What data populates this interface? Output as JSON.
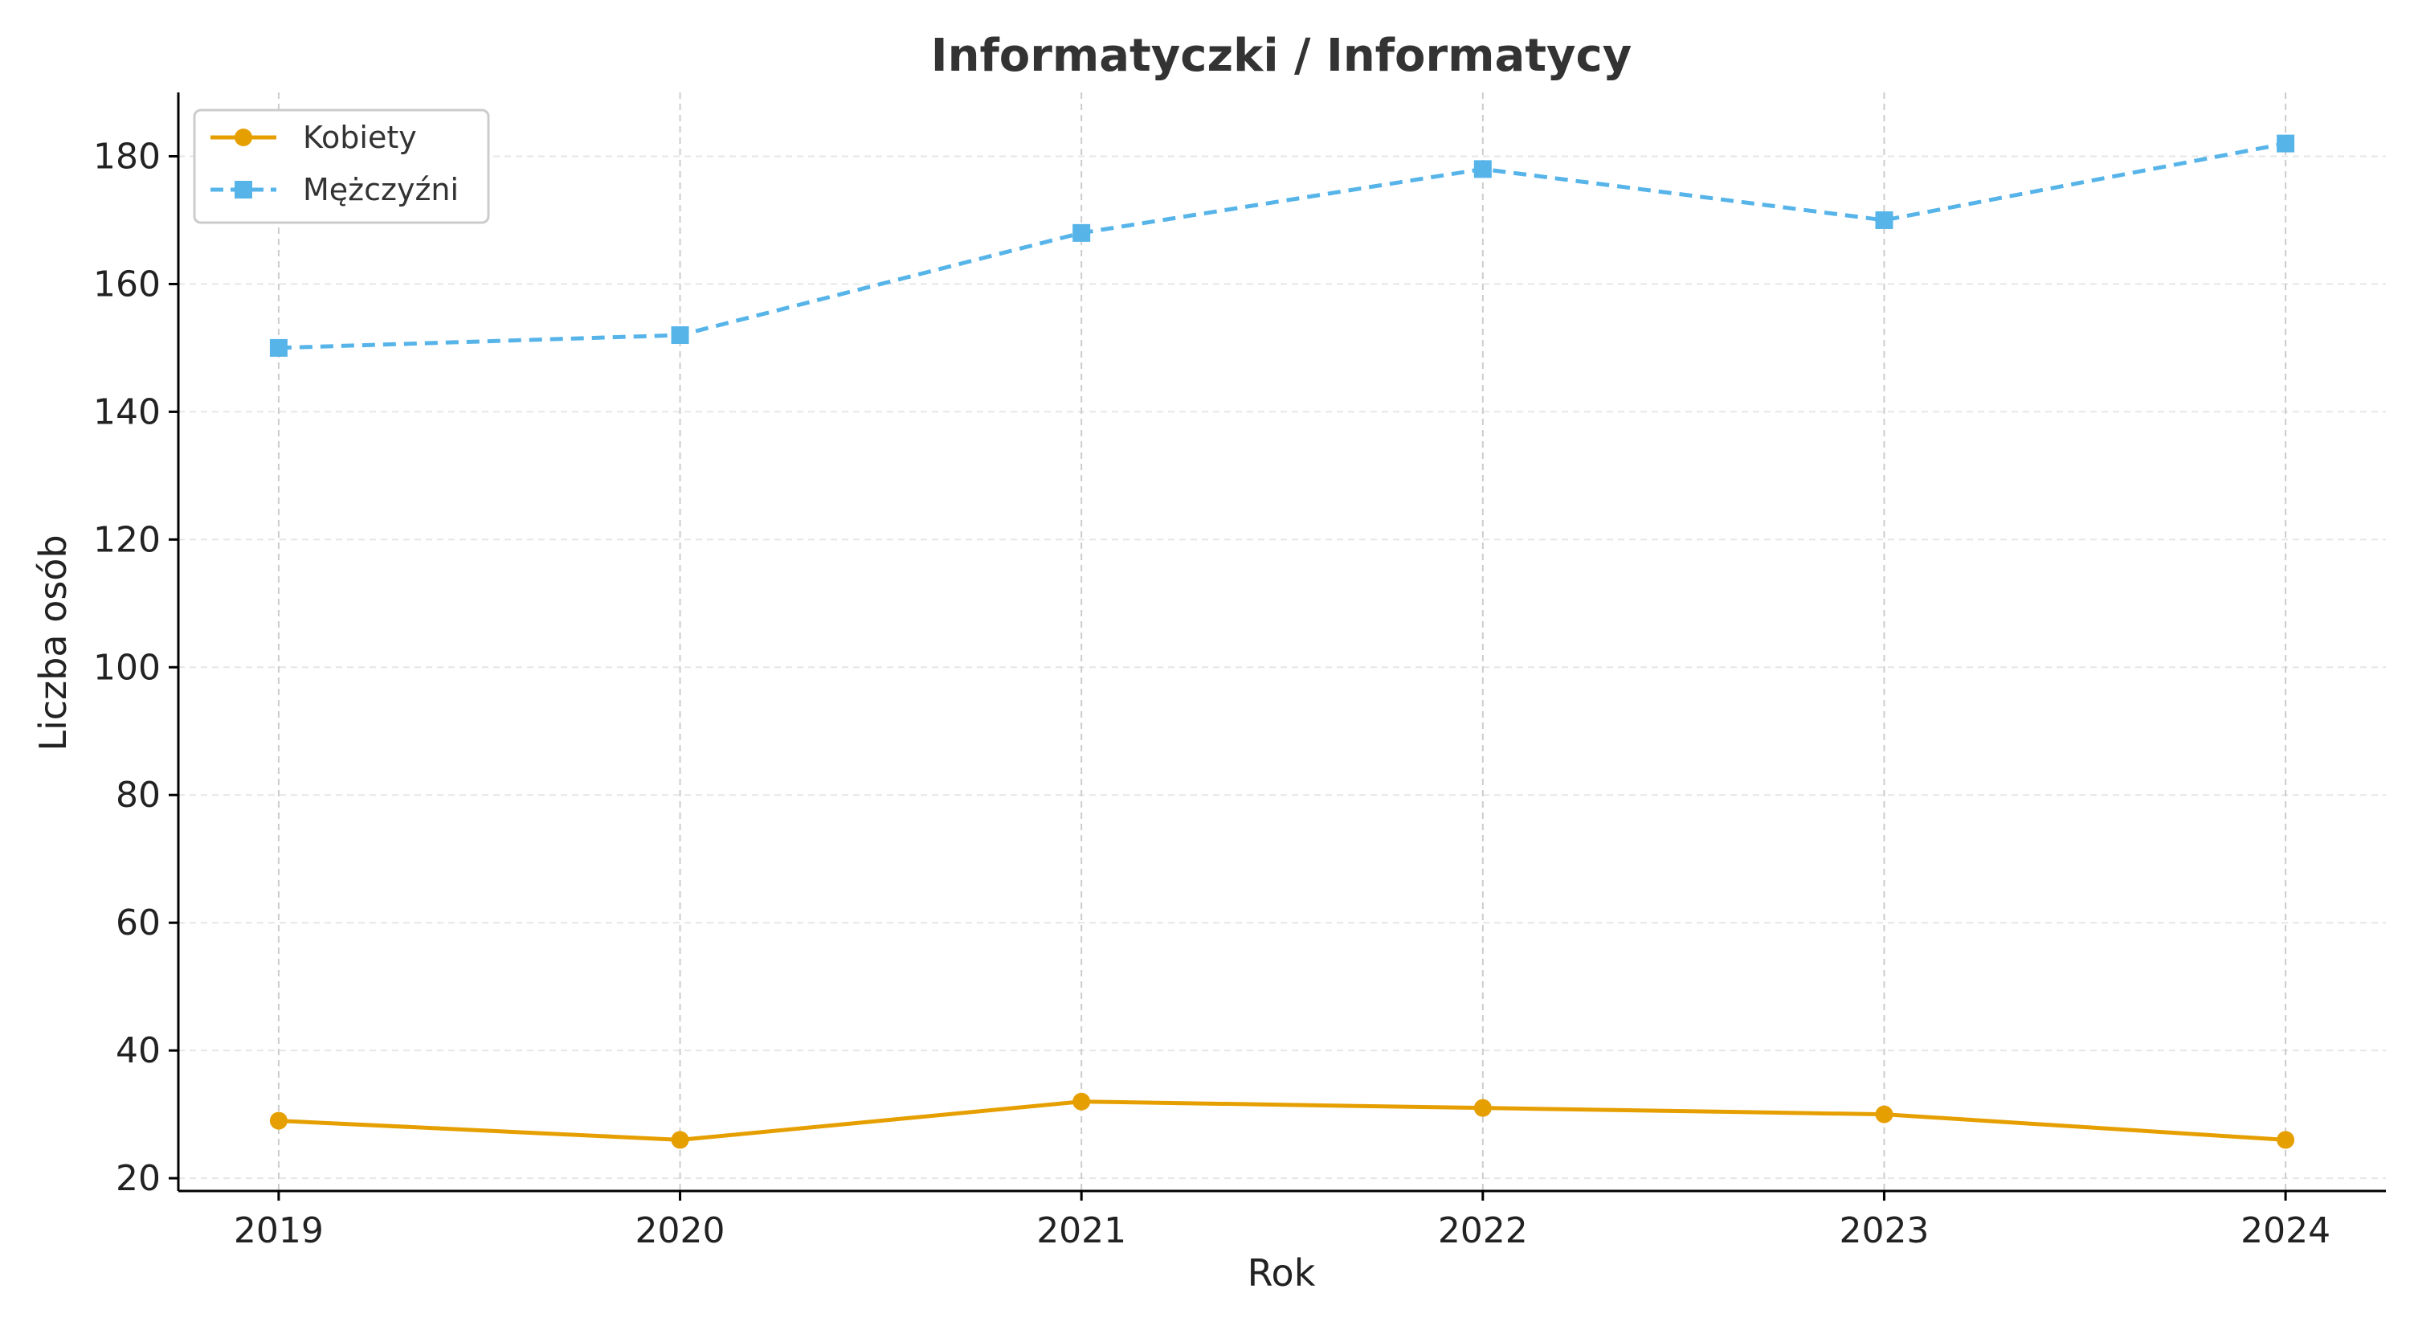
{
  "chart_data": {
    "type": "line",
    "title": "Informatyczki / Informatycy",
    "xlabel": "Rok",
    "ylabel": "Liczba osób",
    "x": [
      2019,
      2020,
      2021,
      2022,
      2023,
      2024
    ],
    "x_tick_labels": [
      "2019",
      "2020",
      "2021",
      "2022",
      "2023",
      "2024"
    ],
    "y_ticks": [
      20,
      40,
      60,
      80,
      100,
      120,
      140,
      160,
      180
    ],
    "y_tick_labels": [
      "20",
      "40",
      "60",
      "80",
      "100",
      "120",
      "140",
      "160",
      "180"
    ],
    "ylim": [
      18,
      190
    ],
    "xlim": [
      2018.75,
      2024.25
    ],
    "grid": true,
    "legend_position": "top-left",
    "series": [
      {
        "name": "Kobiety",
        "values": [
          29,
          26,
          32,
          31,
          30,
          26
        ],
        "color": "#E69F00",
        "line_style": "solid",
        "marker": "circle"
      },
      {
        "name": "Mężczyźni",
        "values": [
          150,
          152,
          168,
          178,
          170,
          182
        ],
        "color": "#56B4E9",
        "line_style": "dashed",
        "marker": "square"
      }
    ]
  }
}
